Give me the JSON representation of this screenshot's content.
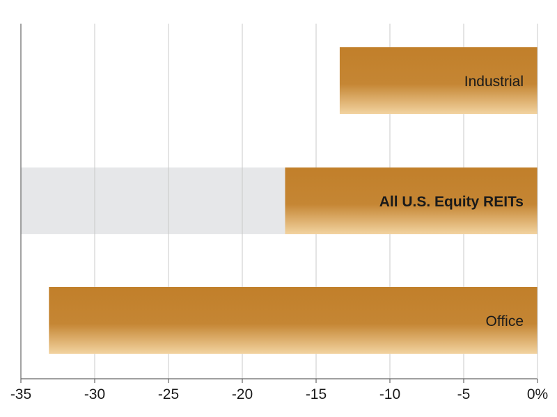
{
  "chart_data": {
    "type": "bar",
    "orientation": "horizontal",
    "categories": [
      "Industrial",
      "All U.S. Equity REITs",
      "Office"
    ],
    "values": [
      -13.4,
      -17.1,
      -33.1
    ],
    "highlight": "All U.S. Equity REITs",
    "xlim": [
      -35,
      0
    ],
    "xticks": [
      -35,
      -30,
      -25,
      -20,
      -15,
      -10,
      -5,
      0
    ],
    "xtick_labels": [
      "-35",
      "-30",
      "-25",
      "-20",
      "-15",
      "-10",
      "-5",
      "0%"
    ],
    "grid": true,
    "legend": "none",
    "colors": {
      "bar_top": "#c17f2a",
      "bar_bottom": "#f2d3a0",
      "highlight_band": "#e6e7e9",
      "grid": "#c8c8c8",
      "axis": "#666666"
    }
  }
}
